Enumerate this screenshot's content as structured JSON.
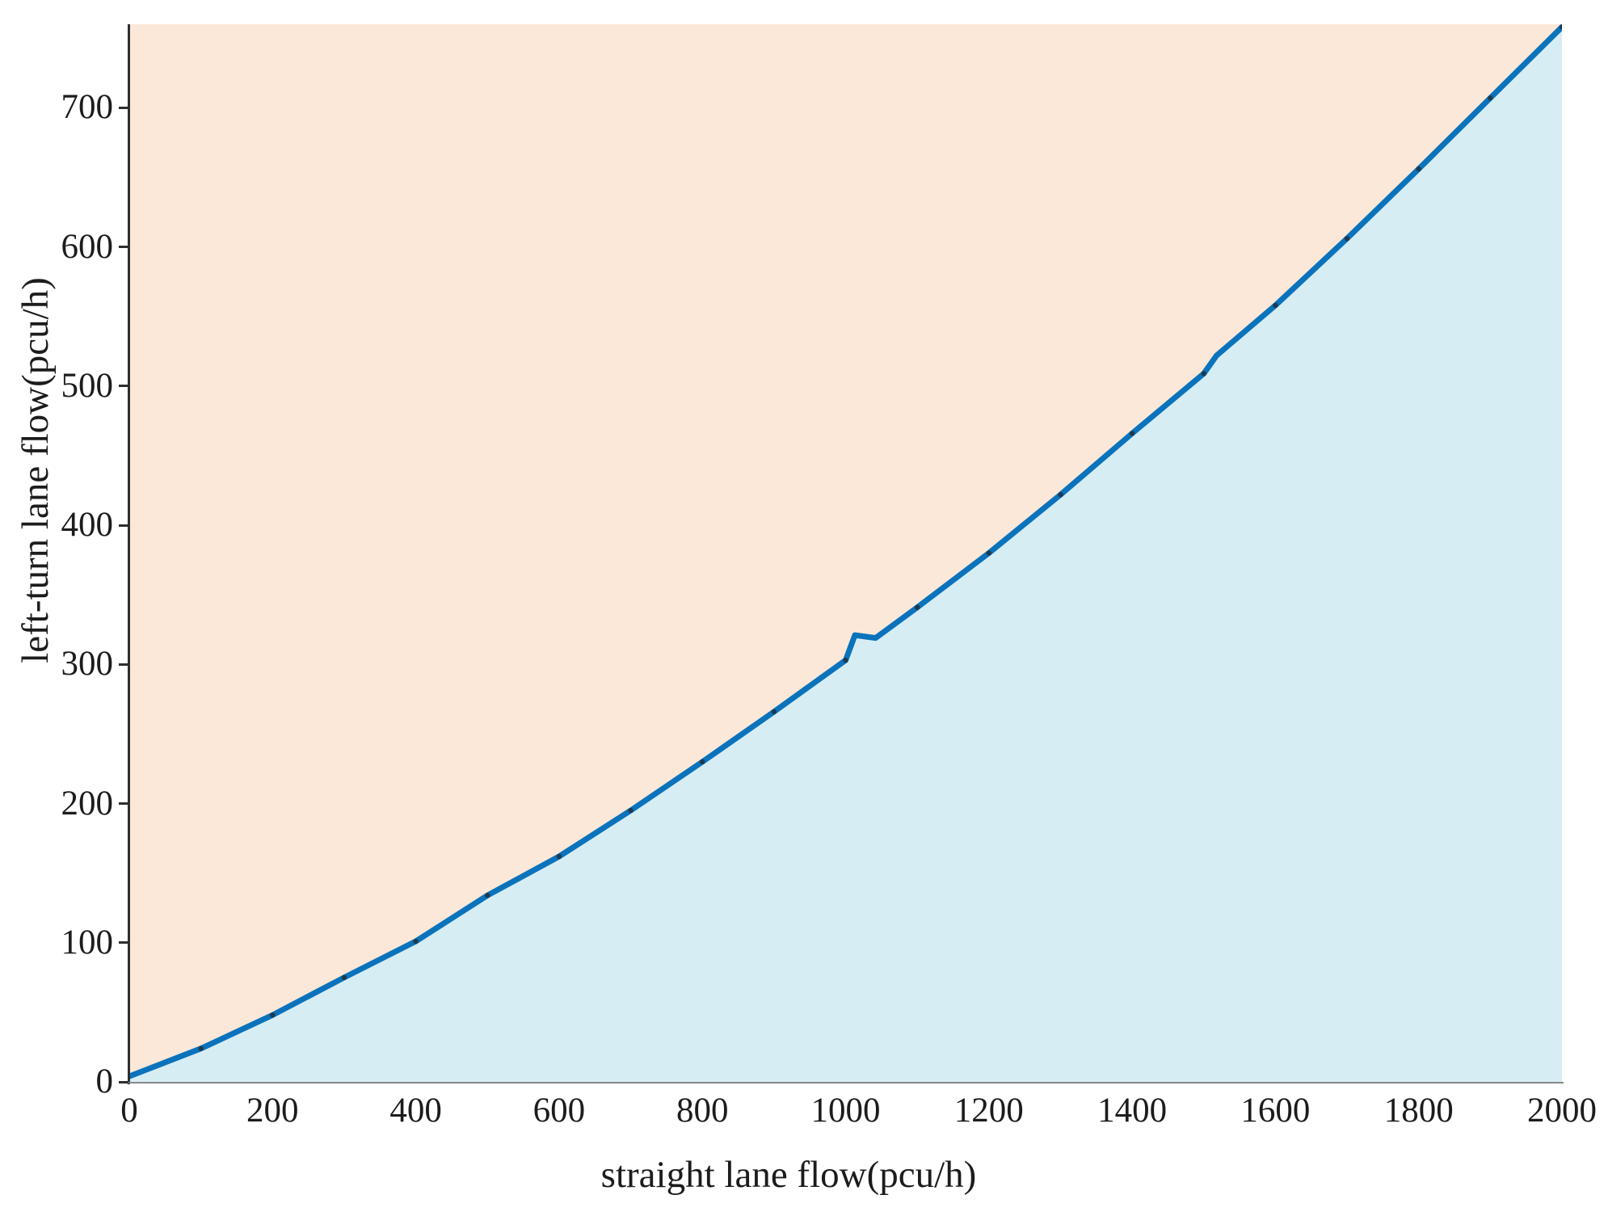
{
  "chart_data": {
    "type": "area",
    "title": "",
    "xlabel": "straight lane flow(pcu/h)",
    "ylabel": "left-turn lane flow(pcu/h)",
    "xlim": [
      0,
      2000
    ],
    "ylim": [
      0,
      760
    ],
    "x_ticks": [
      0,
      200,
      400,
      600,
      800,
      1000,
      1200,
      1400,
      1600,
      1800,
      2000
    ],
    "y_ticks": [
      0,
      100,
      200,
      300,
      400,
      500,
      600,
      700
    ],
    "grid": false,
    "legend": false,
    "boundary_points": [
      [
        0,
        4
      ],
      [
        100,
        24
      ],
      [
        200,
        48
      ],
      [
        300,
        75
      ],
      [
        400,
        101
      ],
      [
        500,
        134
      ],
      [
        600,
        162
      ],
      [
        700,
        195
      ],
      [
        800,
        230
      ],
      [
        900,
        266
      ],
      [
        1000,
        303
      ],
      [
        1013,
        321
      ],
      [
        1042,
        319
      ],
      [
        1100,
        341
      ],
      [
        1200,
        380
      ],
      [
        1300,
        422
      ],
      [
        1400,
        466
      ],
      [
        1500,
        509
      ],
      [
        1518,
        522
      ],
      [
        1600,
        558
      ],
      [
        1700,
        606
      ],
      [
        1800,
        656
      ],
      [
        1900,
        707
      ],
      [
        2000,
        758
      ]
    ],
    "marker_points": [
      [
        100,
        24
      ],
      [
        200,
        48
      ],
      [
        300,
        75
      ],
      [
        400,
        101
      ],
      [
        500,
        134
      ],
      [
        600,
        162
      ],
      [
        700,
        195
      ],
      [
        800,
        230
      ],
      [
        900,
        266
      ],
      [
        1000,
        303
      ],
      [
        1100,
        341
      ],
      [
        1200,
        380
      ],
      [
        1300,
        422
      ],
      [
        1400,
        466
      ],
      [
        1500,
        509
      ],
      [
        1600,
        558
      ],
      [
        1700,
        606
      ],
      [
        1800,
        656
      ],
      [
        1900,
        707
      ],
      [
        2000,
        758
      ]
    ],
    "colors": {
      "region_above": "#fce8d8",
      "region_below": "#d7edf4",
      "line": "#0a73bc",
      "marker": "#1d3a52",
      "axis_left": "#2e2e2e",
      "axis_bottom": "#85898c",
      "text": "#1c1c1c"
    },
    "line_width": 7
  }
}
